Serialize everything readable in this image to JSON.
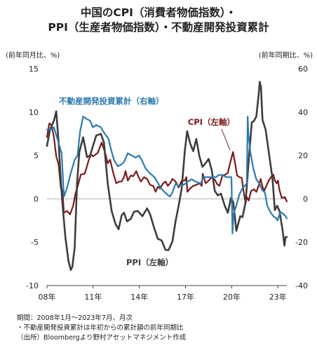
{
  "title": {
    "line1": "中国のCPI（消費者物価指数）・",
    "line2": "PPI（生産者物価指数）・不動産開発投資累計"
  },
  "units": {
    "left": "(前年同月比、%)",
    "right": "(前年同期比、%)"
  },
  "notes": {
    "period": "期間：2008年1月～2023年7月、月次",
    "note": "・不動産開発投資累計は年初からの累計額の前年同期比",
    "source": "（出所）Bloombergより野村アセットマネジメント作成"
  },
  "chart_data": {
    "type": "line",
    "left_axis": {
      "min": -10,
      "max": 15,
      "ticks": [
        15,
        10,
        5,
        0,
        -5,
        -10
      ]
    },
    "right_axis": {
      "min": -40,
      "max": 60,
      "ticks": [
        60,
        40,
        20,
        0,
        -20,
        -40
      ]
    },
    "x_range": [
      2008.0,
      2023.58
    ],
    "x_ticks": [
      {
        "x": 2008,
        "label": "08年"
      },
      {
        "x": 2011,
        "label": "11年"
      },
      {
        "x": 2014,
        "label": "14年"
      },
      {
        "x": 2017,
        "label": "17年"
      },
      {
        "x": 2020,
        "label": "20年"
      },
      {
        "x": 2023,
        "label": "23年"
      }
    ],
    "series": [
      {
        "name": "CPI（左軸）",
        "axis": "left",
        "color": "#7a1a1a",
        "points": [
          [
            2008.0,
            7.1
          ],
          [
            2008.15,
            8.7
          ],
          [
            2008.3,
            8.5
          ],
          [
            2008.45,
            7.1
          ],
          [
            2008.6,
            4.9
          ],
          [
            2008.75,
            4.0
          ],
          [
            2008.9,
            1.2
          ],
          [
            2009.0,
            1.0
          ],
          [
            2009.1,
            -1.6
          ],
          [
            2009.3,
            -1.4
          ],
          [
            2009.5,
            -1.8
          ],
          [
            2009.7,
            -0.8
          ],
          [
            2009.85,
            0.6
          ],
          [
            2010.0,
            1.5
          ],
          [
            2010.2,
            2.8
          ],
          [
            2010.45,
            2.9
          ],
          [
            2010.7,
            4.4
          ],
          [
            2010.85,
            5.1
          ],
          [
            2011.0,
            4.9
          ],
          [
            2011.3,
            5.3
          ],
          [
            2011.55,
            6.5
          ],
          [
            2011.75,
            5.5
          ],
          [
            2011.95,
            4.1
          ],
          [
            2012.1,
            4.5
          ],
          [
            2012.3,
            3.0
          ],
          [
            2012.5,
            1.8
          ],
          [
            2012.7,
            2.0
          ],
          [
            2012.85,
            2.0
          ],
          [
            2013.0,
            2.5
          ],
          [
            2013.1,
            3.2
          ],
          [
            2013.25,
            2.1
          ],
          [
            2013.45,
            2.7
          ],
          [
            2013.6,
            2.6
          ],
          [
            2013.8,
            3.2
          ],
          [
            2013.95,
            2.5
          ],
          [
            2014.1,
            2.0
          ],
          [
            2014.3,
            2.5
          ],
          [
            2014.5,
            2.3
          ],
          [
            2014.7,
            1.6
          ],
          [
            2014.9,
            1.5
          ],
          [
            2015.05,
            0.8
          ],
          [
            2015.2,
            1.4
          ],
          [
            2015.35,
            1.2
          ],
          [
            2015.55,
            1.8
          ],
          [
            2015.7,
            2.0
          ],
          [
            2015.85,
            1.5
          ],
          [
            2016.0,
            1.8
          ],
          [
            2016.15,
            2.3
          ],
          [
            2016.35,
            2.0
          ],
          [
            2016.55,
            1.3
          ],
          [
            2016.75,
            2.1
          ],
          [
            2016.95,
            2.1
          ],
          [
            2017.05,
            2.5
          ],
          [
            2017.12,
            0.8
          ],
          [
            2017.3,
            1.2
          ],
          [
            2017.5,
            1.5
          ],
          [
            2017.7,
            1.6
          ],
          [
            2017.9,
            1.8
          ],
          [
            2018.05,
            1.5
          ],
          [
            2018.12,
            2.9
          ],
          [
            2018.3,
            1.8
          ],
          [
            2018.5,
            2.1
          ],
          [
            2018.7,
            2.5
          ],
          [
            2018.9,
            2.2
          ],
          [
            2019.05,
            1.7
          ],
          [
            2019.2,
            1.5
          ],
          [
            2019.4,
            2.7
          ],
          [
            2019.6,
            2.8
          ],
          [
            2019.75,
            3.0
          ],
          [
            2019.85,
            3.8
          ],
          [
            2019.95,
            4.5
          ],
          [
            2020.08,
            5.4
          ],
          [
            2020.2,
            4.3
          ],
          [
            2020.35,
            2.7
          ],
          [
            2020.5,
            2.5
          ],
          [
            2020.65,
            2.4
          ],
          [
            2020.8,
            0.5
          ],
          [
            2020.9,
            -0.5
          ],
          [
            2020.98,
            0.2
          ],
          [
            2021.1,
            -0.2
          ],
          [
            2021.25,
            0.9
          ],
          [
            2021.45,
            1.1
          ],
          [
            2021.6,
            0.8
          ],
          [
            2021.75,
            1.5
          ],
          [
            2021.88,
            2.3
          ],
          [
            2021.98,
            1.5
          ],
          [
            2022.1,
            0.9
          ],
          [
            2022.25,
            1.5
          ],
          [
            2022.4,
            2.1
          ],
          [
            2022.55,
            2.5
          ],
          [
            2022.7,
            2.8
          ],
          [
            2022.8,
            2.1
          ],
          [
            2022.92,
            1.8
          ],
          [
            2023.0,
            2.1
          ],
          [
            2023.1,
            1.0
          ],
          [
            2023.25,
            0.1
          ],
          [
            2023.45,
            0.2
          ],
          [
            2023.58,
            -0.3
          ]
        ]
      },
      {
        "name": "PPI（左軸）",
        "axis": "left",
        "color": "#3d3d3d",
        "points": [
          [
            2008.0,
            6.1
          ],
          [
            2008.2,
            8.0
          ],
          [
            2008.45,
            9.0
          ],
          [
            2008.6,
            10.1
          ],
          [
            2008.75,
            6.6
          ],
          [
            2008.9,
            2.0
          ],
          [
            2009.0,
            -0.5
          ],
          [
            2009.2,
            -4.5
          ],
          [
            2009.4,
            -7.2
          ],
          [
            2009.55,
            -8.2
          ],
          [
            2009.65,
            -7.8
          ],
          [
            2009.8,
            -5.6
          ],
          [
            2009.95,
            1.7
          ],
          [
            2010.1,
            5.4
          ],
          [
            2010.35,
            7.1
          ],
          [
            2010.6,
            4.8
          ],
          [
            2010.8,
            5.0
          ],
          [
            2010.95,
            5.9
          ],
          [
            2011.2,
            7.3
          ],
          [
            2011.5,
            7.5
          ],
          [
            2011.7,
            6.5
          ],
          [
            2011.95,
            1.7
          ],
          [
            2012.2,
            -1.4
          ],
          [
            2012.45,
            -2.9
          ],
          [
            2012.65,
            -3.5
          ],
          [
            2012.85,
            -1.9
          ],
          [
            2013.0,
            -1.6
          ],
          [
            2013.2,
            -2.6
          ],
          [
            2013.45,
            -2.3
          ],
          [
            2013.65,
            -1.5
          ],
          [
            2013.9,
            -1.4
          ],
          [
            2014.2,
            -2.0
          ],
          [
            2014.5,
            -1.1
          ],
          [
            2014.7,
            -1.8
          ],
          [
            2014.95,
            -3.3
          ],
          [
            2015.2,
            -4.6
          ],
          [
            2015.45,
            -4.8
          ],
          [
            2015.7,
            -5.9
          ],
          [
            2015.9,
            -5.9
          ],
          [
            2016.15,
            -4.9
          ],
          [
            2016.35,
            -2.6
          ],
          [
            2016.55,
            -0.8
          ],
          [
            2016.75,
            1.2
          ],
          [
            2016.95,
            5.5
          ],
          [
            2017.1,
            7.8
          ],
          [
            2017.3,
            6.4
          ],
          [
            2017.5,
            5.5
          ],
          [
            2017.7,
            6.9
          ],
          [
            2017.9,
            4.9
          ],
          [
            2018.1,
            3.7
          ],
          [
            2018.3,
            4.1
          ],
          [
            2018.5,
            4.6
          ],
          [
            2018.7,
            3.3
          ],
          [
            2018.9,
            0.9
          ],
          [
            2019.1,
            0.4
          ],
          [
            2019.3,
            0.6
          ],
          [
            2019.55,
            -0.8
          ],
          [
            2019.75,
            -1.6
          ],
          [
            2019.95,
            0.1
          ],
          [
            2020.1,
            -0.4
          ],
          [
            2020.3,
            -3.7
          ],
          [
            2020.4,
            -3.0
          ],
          [
            2020.55,
            -2.0
          ],
          [
            2020.7,
            -2.1
          ],
          [
            2020.9,
            -0.4
          ],
          [
            2021.1,
            4.4
          ],
          [
            2021.3,
            8.8
          ],
          [
            2021.45,
            9.0
          ],
          [
            2021.6,
            9.5
          ],
          [
            2021.75,
            12.0
          ],
          [
            2021.82,
            13.5
          ],
          [
            2021.9,
            12.9
          ],
          [
            2022.0,
            9.1
          ],
          [
            2022.2,
            8.0
          ],
          [
            2022.35,
            6.1
          ],
          [
            2022.5,
            4.2
          ],
          [
            2022.65,
            2.3
          ],
          [
            2022.8,
            -1.3
          ],
          [
            2022.95,
            -0.8
          ],
          [
            2023.1,
            -1.4
          ],
          [
            2023.3,
            -3.6
          ],
          [
            2023.42,
            -5.4
          ],
          [
            2023.5,
            -4.4
          ],
          [
            2023.58,
            -4.4
          ]
        ]
      },
      {
        "name": "不動産開発投資累計（右軸）",
        "axis": "right",
        "color": "#2c7ab0",
        "points": [
          [
            2008.0,
            32
          ],
          [
            2008.25,
            32
          ],
          [
            2008.45,
            33
          ],
          [
            2008.7,
            27
          ],
          [
            2008.95,
            21
          ],
          [
            2009.1,
            1
          ],
          [
            2009.3,
            5
          ],
          [
            2009.55,
            12
          ],
          [
            2009.8,
            18
          ],
          [
            2009.98,
            20
          ],
          [
            2010.15,
            31
          ],
          [
            2010.35,
            38
          ],
          [
            2010.55,
            37
          ],
          [
            2010.8,
            36
          ],
          [
            2010.98,
            33
          ],
          [
            2011.2,
            34
          ],
          [
            2011.5,
            33
          ],
          [
            2011.75,
            30
          ],
          [
            2011.98,
            28
          ],
          [
            2012.15,
            23
          ],
          [
            2012.35,
            18
          ],
          [
            2012.6,
            15
          ],
          [
            2012.85,
            16
          ],
          [
            2013.0,
            17
          ],
          [
            2013.25,
            21
          ],
          [
            2013.5,
            20
          ],
          [
            2013.75,
            19
          ],
          [
            2013.98,
            20
          ],
          [
            2014.15,
            18
          ],
          [
            2014.4,
            14
          ],
          [
            2014.65,
            12
          ],
          [
            2014.98,
            10
          ],
          [
            2015.15,
            8
          ],
          [
            2015.4,
            5
          ],
          [
            2015.65,
            3
          ],
          [
            2015.98,
            1
          ],
          [
            2016.15,
            3
          ],
          [
            2016.35,
            7
          ],
          [
            2016.55,
            6
          ],
          [
            2016.75,
            6
          ],
          [
            2016.98,
            7
          ],
          [
            2017.15,
            8
          ],
          [
            2017.4,
            9
          ],
          [
            2017.65,
            8
          ],
          [
            2017.98,
            7
          ],
          [
            2018.15,
            10
          ],
          [
            2018.4,
            10
          ],
          [
            2018.65,
            10
          ],
          [
            2018.98,
            10
          ],
          [
            2019.15,
            11
          ],
          [
            2019.4,
            11
          ],
          [
            2019.65,
            10
          ],
          [
            2019.98,
            10
          ],
          [
            2020.05,
            -16
          ],
          [
            2020.12,
            -7
          ],
          [
            2020.3,
            -3
          ],
          [
            2020.5,
            2
          ],
          [
            2020.7,
            5
          ],
          [
            2020.98,
            7
          ],
          [
            2021.04,
            38
          ],
          [
            2021.08,
            30
          ],
          [
            2021.2,
            22
          ],
          [
            2021.4,
            14
          ],
          [
            2021.6,
            9
          ],
          [
            2021.8,
            7
          ],
          [
            2021.98,
            4
          ],
          [
            2022.15,
            3
          ],
          [
            2022.3,
            -3
          ],
          [
            2022.5,
            -6
          ],
          [
            2022.7,
            -8
          ],
          [
            2022.9,
            -9
          ],
          [
            2022.98,
            -10
          ],
          [
            2023.15,
            -6
          ],
          [
            2023.35,
            -7
          ],
          [
            2023.5,
            -8
          ],
          [
            2023.58,
            -9
          ]
        ]
      }
    ],
    "labels": [
      {
        "text": "不動産開発投資累計（右軸）",
        "color": "#2c7ab0"
      },
      {
        "text": "CPI（左軸）",
        "color": "#7a1a1a"
      },
      {
        "text": "PPI（左軸）",
        "color": "#3d3d3d"
      }
    ]
  }
}
